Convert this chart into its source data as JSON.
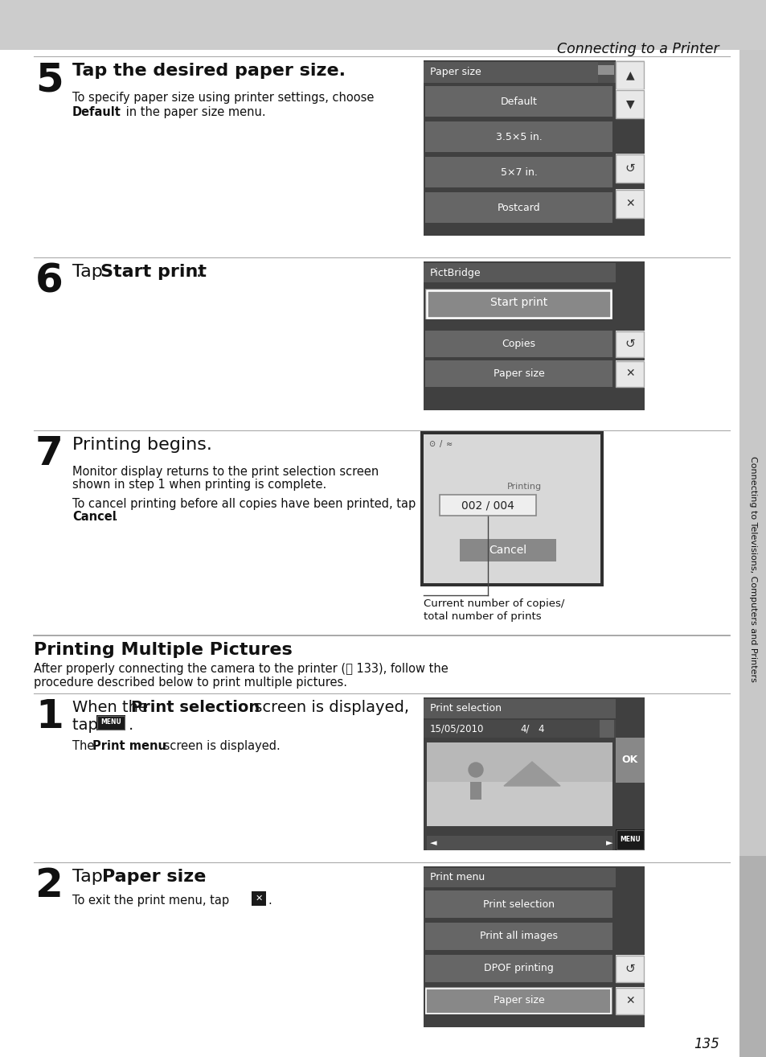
{
  "page_bg": "#ffffff",
  "header_bg": "#cccccc",
  "header_text": "Connecting to a Printer",
  "sidebar_text": "Connecting to Televisions, Computers and Printers",
  "page_number": "135",
  "dark_screen_bg": "#404040",
  "dark_screen_header": "#606060",
  "button_bg": "#666666",
  "button_selected_bg": "#888888",
  "nav_button_bg": "#e8e8e8",
  "nav_button_border": "#aaaaaa",
  "light_screen_bg": "#d0d0d0",
  "white": "#ffffff",
  "black": "#000000",
  "text_dark": "#111111",
  "text_gray": "#555555"
}
